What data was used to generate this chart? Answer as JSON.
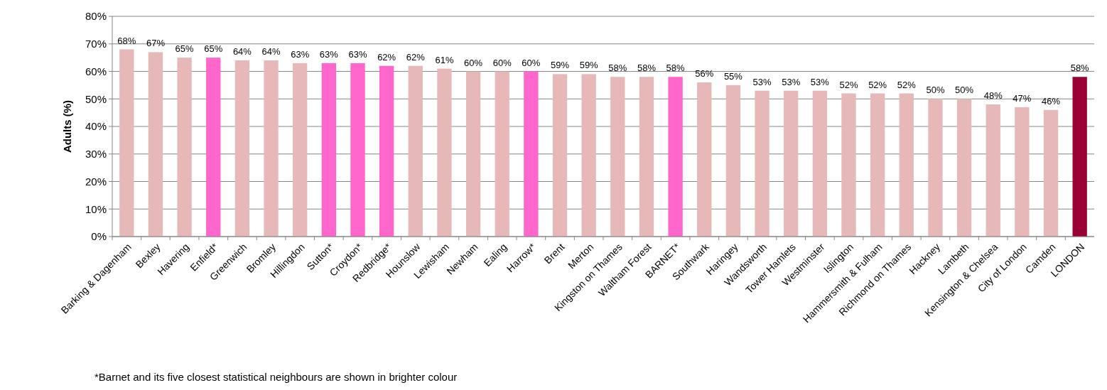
{
  "chart_data": {
    "type": "bar",
    "ylabel": "Adults (%)",
    "categories": [
      "Barking & Dagenham",
      "Bexley",
      "Havering",
      "Enfield*",
      "Greenwich",
      "Bromley",
      "Hillingdon",
      "Sutton*",
      "Croydon*",
      "Redbridge*",
      "Hounslow",
      "Lewisham",
      "Newham",
      "Ealing",
      "Harrow*",
      "Brent",
      "Merton",
      "Kingston on Thames",
      "Waltham Forest",
      "BARNET*",
      "Southwark",
      "Haringey",
      "Wandsworth",
      "Tower Hamlets",
      "Westminster",
      "Islington",
      "Hammersmith & Fulham",
      "Richmond on Thames",
      "Hackney",
      "Lambeth",
      "Kensington & Chelsea",
      "City of London",
      "Camden",
      "LONDON"
    ],
    "values": [
      68,
      67,
      65,
      65,
      64,
      64,
      63,
      63,
      63,
      62,
      62,
      61,
      60,
      60,
      60,
      59,
      59,
      58,
      58,
      58,
      56,
      55,
      53,
      53,
      53,
      52,
      52,
      52,
      50,
      50,
      48,
      47,
      46,
      58
    ],
    "value_labels": [
      "68%",
      "67%",
      "65%",
      "65%",
      "64%",
      "64%",
      "63%",
      "63%",
      "63%",
      "62%",
      "62%",
      "61%",
      "60%",
      "60%",
      "60%",
      "59%",
      "59%",
      "58%",
      "58%",
      "58%",
      "56%",
      "55%",
      "53%",
      "53%",
      "53%",
      "52%",
      "52%",
      "52%",
      "50%",
      "50%",
      "48%",
      "47%",
      "46%",
      "58%"
    ],
    "colors": [
      "#e6b9b8",
      "#e6b9b8",
      "#e6b9b8",
      "#ff66cc",
      "#e6b9b8",
      "#e6b9b8",
      "#e6b9b8",
      "#ff66cc",
      "#ff66cc",
      "#ff66cc",
      "#e6b9b8",
      "#e6b9b8",
      "#e6b9b8",
      "#e6b9b8",
      "#ff66cc",
      "#e6b9b8",
      "#e6b9b8",
      "#e6b9b8",
      "#e6b9b8",
      "#ff66cc",
      "#e6b9b8",
      "#e6b9b8",
      "#e6b9b8",
      "#e6b9b8",
      "#e6b9b8",
      "#e6b9b8",
      "#e6b9b8",
      "#e6b9b8",
      "#e6b9b8",
      "#e6b9b8",
      "#e6b9b8",
      "#e6b9b8",
      "#e6b9b8",
      "#990033"
    ],
    "ylim": [
      0,
      80
    ],
    "yticks": [
      {
        "value": 0,
        "label": "0%"
      },
      {
        "value": 10,
        "label": "10%"
      },
      {
        "value": 20,
        "label": "20%"
      },
      {
        "value": 30,
        "label": "30%"
      },
      {
        "value": 40,
        "label": "40%"
      },
      {
        "value": 50,
        "label": "50%"
      },
      {
        "value": 60,
        "label": "60%"
      },
      {
        "value": 70,
        "label": "70%"
      },
      {
        "value": 80,
        "label": "80%"
      }
    ],
    "grid": "y",
    "annotations": [
      "*Barnet and its five closest statistical neighbours are  shown in brighter colour"
    ]
  }
}
